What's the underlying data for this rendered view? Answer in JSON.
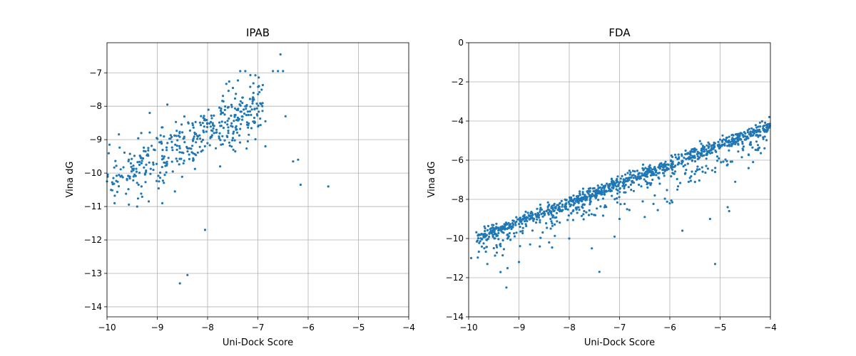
{
  "chart_data": [
    {
      "type": "scatter",
      "title": "IPAB",
      "xlabel": "Uni-Dock Score",
      "ylabel": "Vina dG",
      "xlim": [
        -10,
        -4
      ],
      "ylim": [
        -14.3,
        -6.1
      ],
      "xticks": [
        -10,
        -9,
        -8,
        -7,
        -6,
        -5,
        -4
      ],
      "yticks": [
        -14,
        -13,
        -12,
        -11,
        -10,
        -9,
        -8,
        -7
      ],
      "grid": true,
      "color": "#1f77b4",
      "n_points": 420,
      "outliers": {
        "x": [
          -6.55,
          -6.5,
          -6.45,
          -6.7,
          -6.6,
          -6.3,
          -6.2,
          -6.15,
          -5.6,
          -6.85,
          -7.35,
          -7.25,
          -7.2,
          -7.45,
          -8.55,
          -8.4,
          -8.05,
          -8.65,
          -8.9,
          -9.15,
          -9.85,
          -7.75,
          -6.85,
          -8.8,
          -9.4,
          -9.95,
          -10.0
        ],
        "y": [
          -6.45,
          -6.95,
          -8.3,
          -6.95,
          -6.95,
          -9.65,
          -9.6,
          -10.35,
          -10.4,
          -9.2,
          -6.95,
          -6.95,
          -9.05,
          -9.35,
          -13.3,
          -13.05,
          -11.7,
          -10.55,
          -10.9,
          -8.2,
          -10.9,
          -9.8,
          -8.45,
          -7.95,
          -11.0,
          -9.15,
          -10.25
        ]
      }
    },
    {
      "type": "scatter",
      "title": "FDA",
      "xlabel": "Uni-Dock Score",
      "ylabel": "Vina dG",
      "xlim": [
        -10,
        -4
      ],
      "ylim": [
        -14,
        0
      ],
      "xticks": [
        -10,
        -9,
        -8,
        -7,
        -6,
        -5,
        -4
      ],
      "yticks": [
        -14,
        -12,
        -10,
        -8,
        -6,
        -4,
        -2,
        0
      ],
      "grid": true,
      "color": "#1f77b4",
      "n_points": 1100,
      "outliers": {
        "x": [
          -9.25,
          -9.0,
          -9.95,
          -9.8,
          -7.4,
          -7.55,
          -5.75,
          -5.1,
          -5.2,
          -4.7,
          -4.85,
          -4.82,
          -6.0,
          -7.0,
          -6.5,
          -6.3,
          -8.0,
          -8.4,
          -9.05,
          -7.1,
          -6.85,
          -5.85,
          -5.45,
          -5.1,
          -6.2,
          -6.8
        ],
        "y": [
          -12.5,
          -11.2,
          -11.0,
          -9.8,
          -11.7,
          -10.5,
          -9.6,
          -11.3,
          -9.0,
          -7.1,
          -8.4,
          -8.6,
          -8.2,
          -9.0,
          -8.9,
          -7.8,
          -10.0,
          -10.2,
          -9.7,
          -9.9,
          -8.5,
          -7.5,
          -6.5,
          -6.6,
          -7.2,
          -6.9
        ]
      }
    }
  ]
}
